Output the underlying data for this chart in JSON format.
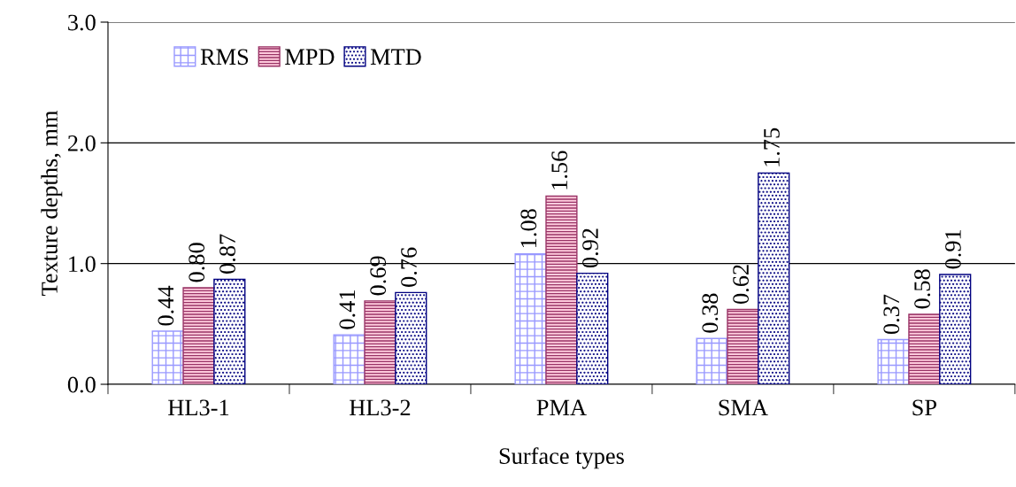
{
  "chart_data": {
    "type": "bar",
    "xlabel": "Surface types",
    "ylabel": "Texture depths, mm",
    "categories": [
      "HL3-1",
      "HL3-2",
      "PMA",
      "SMA",
      "SP"
    ],
    "series": [
      {
        "name": "RMS",
        "color": "#9999ff",
        "values": [
          0.44,
          0.41,
          1.08,
          0.38,
          0.37
        ],
        "value_labels": [
          "0.44",
          "0.41",
          "1.08",
          "0.38",
          "0.37"
        ]
      },
      {
        "name": "MPD",
        "color": "#993366",
        "values": [
          0.8,
          0.69,
          1.56,
          0.62,
          0.58
        ],
        "value_labels": [
          "0.80",
          "0.69",
          "1.56",
          "0.62",
          "0.58"
        ]
      },
      {
        "name": "MTD",
        "color": "#000080",
        "values": [
          0.87,
          0.76,
          0.92,
          1.75,
          0.91
        ],
        "value_labels": [
          "0.87",
          "0.76",
          "0.92",
          "1.75",
          "0.91"
        ]
      }
    ],
    "ylim": [
      0,
      3
    ],
    "yticks": [
      {
        "value": 0,
        "label": "0.0"
      },
      {
        "value": 1,
        "label": "1.0"
      },
      {
        "value": 2,
        "label": "2.0"
      },
      {
        "value": 3,
        "label": "3.0"
      }
    ],
    "grid": "y",
    "legend": "top left"
  }
}
